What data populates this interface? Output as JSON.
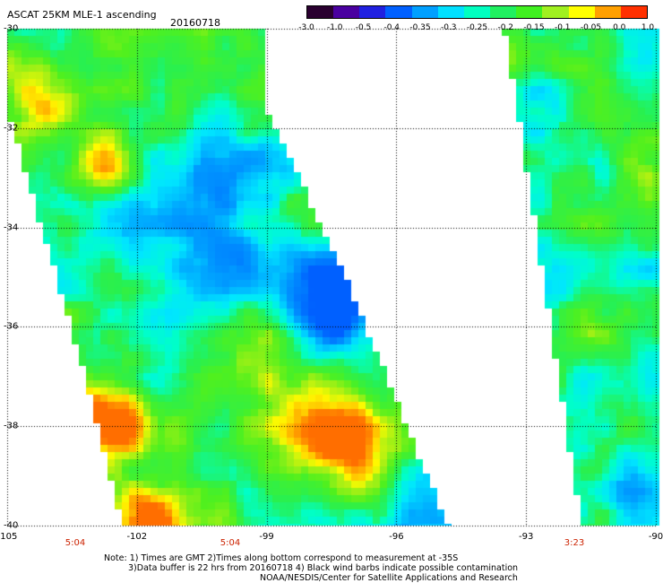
{
  "header": {
    "title": "ASCAT 25KM MLE-1 ascending",
    "date": "20160718"
  },
  "colorbar": {
    "tick_labels": [
      "-3.0",
      "-1.0",
      "-0.5",
      "-0.4",
      "-0.35",
      "-0.3",
      "-0.25",
      "-0.2",
      "-0.15",
      "-0.1",
      "-0.05",
      "0.0",
      "1.0"
    ],
    "colors": [
      "#2a0030",
      "#4a00a0",
      "#2020e0",
      "#0060ff",
      "#00a0ff",
      "#00e0ff",
      "#00ffc0",
      "#20f060",
      "#40f020",
      "#a0f020",
      "#ffff00",
      "#ffa000",
      "#ff3000"
    ]
  },
  "map": {
    "lat_range": [
      -40,
      -30
    ],
    "lon_range": [
      -105,
      -90
    ],
    "lat_labels": [
      "-30",
      "-32",
      "-34",
      "-36",
      "-38",
      "-40"
    ],
    "lon_labels": [
      "-105",
      "-102",
      "-99",
      "-96",
      "-93",
      "-90"
    ],
    "pass_times": [
      "5:04",
      "5:04",
      "3:23"
    ]
  },
  "notes": {
    "line1": "Note: 1) Times are GMT 2)Times along bottom correspond to measurement at -35S",
    "line2": "3)Data buffer is 22 hrs from 20160718 4) Black wind barbs indicate possible contamination",
    "line3": "NOAA/NESDIS/Center for Satellite Applications and Research"
  }
}
